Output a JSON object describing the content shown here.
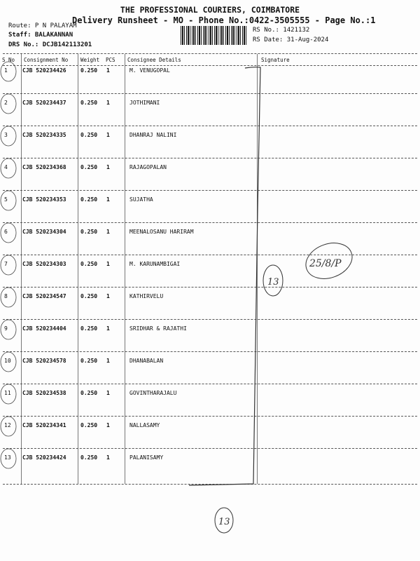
{
  "header": {
    "company": "THE PROFESSIONAL COURIERS, COIMBATORE",
    "subtitle": "Delivery Runsheet - MO - Phone No.:0422-3505555 - Page No.:1",
    "route": "Route: P N PALAYAM",
    "staff": "Staff: BALAKANNAN",
    "drs": "DRS No.: DCJB142113201",
    "rs_no": "RS No.: 1421132",
    "rs_date": "RS Date: 31-Aug-2024"
  },
  "table": {
    "columns": [
      "S No",
      "Consignment No",
      "Weight",
      "PCS",
      "Consignee Details",
      "Signature"
    ],
    "rows": [
      {
        "sno": "1",
        "consignment": "CJB 520234426",
        "weight": "0.250",
        "pcs": "1",
        "consignee": "M. VENUGOPAL"
      },
      {
        "sno": "2",
        "consignment": "CJB 520234437",
        "weight": "0.250",
        "pcs": "1",
        "consignee": "JOTHIMANI"
      },
      {
        "sno": "3",
        "consignment": "CJB 520234335",
        "weight": "0.250",
        "pcs": "1",
        "consignee": "DHANRAJ NALINI"
      },
      {
        "sno": "4",
        "consignment": "CJB 520234368",
        "weight": "0.250",
        "pcs": "1",
        "consignee": "RAJAGOPALAN"
      },
      {
        "sno": "5",
        "consignment": "CJB 520234353",
        "weight": "0.250",
        "pcs": "1",
        "consignee": "SUJATHA"
      },
      {
        "sno": "6",
        "consignment": "CJB 520234304",
        "weight": "0.250",
        "pcs": "1",
        "consignee": "MEENALOSANU HARIRAM"
      },
      {
        "sno": "7",
        "consignment": "CJB 520234303",
        "weight": "0.250",
        "pcs": "1",
        "consignee": "M. KARUNAMBIGAI"
      },
      {
        "sno": "8",
        "consignment": "CJB 520234547",
        "weight": "0.250",
        "pcs": "1",
        "consignee": "KATHIRVELU"
      },
      {
        "sno": "9",
        "consignment": "CJB 520234404",
        "weight": "0.250",
        "pcs": "1",
        "consignee": "SRIDHAR & RAJATHI"
      },
      {
        "sno": "10",
        "consignment": "CJB 520234578",
        "weight": "0.250",
        "pcs": "1",
        "consignee": "DHANABALAN"
      },
      {
        "sno": "11",
        "consignment": "CJB 520234538",
        "weight": "0.250",
        "pcs": "1",
        "consignee": "GOVINTHARAJALU"
      },
      {
        "sno": "12",
        "consignment": "CJB 520234341",
        "weight": "0.250",
        "pcs": "1",
        "consignee": "NALLASAMY"
      },
      {
        "sno": "13",
        "consignment": "CJB 520234424",
        "weight": "0.250",
        "pcs": "1",
        "consignee": "PALANISAMY"
      }
    ]
  },
  "handwriting": {
    "note": "25/8/P",
    "count_mark": "13",
    "footer_mark": "13"
  }
}
